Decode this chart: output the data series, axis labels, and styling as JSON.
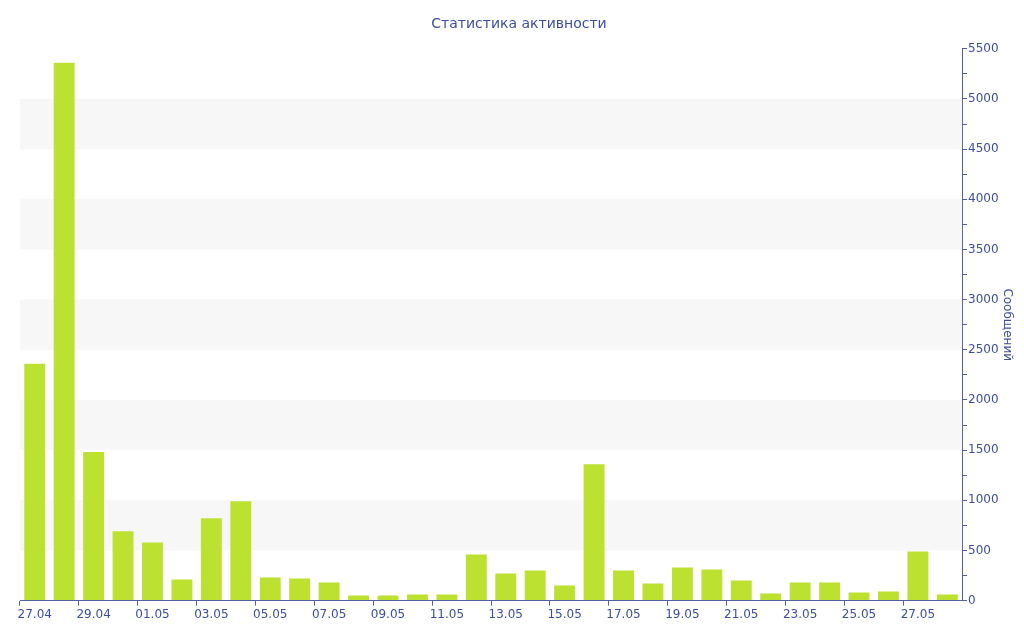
{
  "chart_data": {
    "type": "bar",
    "title": "Статистика активности",
    "ylabel": "Сообщений",
    "categories": [
      "27.04",
      null,
      "29.04",
      null,
      "01.05",
      null,
      "03.05",
      null,
      "05.05",
      null,
      "07.05",
      null,
      "09.05",
      null,
      "11.05",
      null,
      "13.05",
      null,
      "15.05",
      null,
      "17.05",
      null,
      "19.05",
      null,
      "21.05",
      null,
      "23.05",
      null,
      "25.05",
      null,
      "27.05",
      null
    ],
    "values": [
      2360,
      5360,
      1480,
      690,
      580,
      210,
      820,
      990,
      230,
      220,
      180,
      50,
      50,
      60,
      60,
      460,
      270,
      300,
      150,
      1360,
      300,
      170,
      330,
      310,
      200,
      70,
      180,
      180,
      80,
      90,
      490,
      60
    ],
    "color": "#bce130",
    "ylim": [
      0,
      5500
    ],
    "yticks": [
      0,
      {
        "value": 250,
        "label": null
      },
      500,
      {
        "value": 750,
        "label": null
      },
      1000,
      {
        "value": 1250,
        "label": null
      },
      1500,
      {
        "value": 1750,
        "label": null
      },
      2000,
      {
        "value": 2250,
        "label": null
      },
      2500,
      {
        "value": 2750,
        "label": null
      },
      3000,
      {
        "value": 3250,
        "label": null
      },
      3500,
      {
        "value": 3750,
        "label": null
      },
      4000,
      {
        "value": 4250,
        "label": null
      },
      4500,
      {
        "value": 4750,
        "label": null
      },
      5000,
      {
        "value": 5250,
        "label": null
      },
      5500
    ],
    "bands": [
      {
        "axis": "y",
        "from": 500,
        "to": 1000,
        "color": "#f7f7f7"
      },
      {
        "axis": "y",
        "from": 1500,
        "to": 2000,
        "color": "#f7f7f7"
      },
      {
        "axis": "y",
        "from": 2500,
        "to": 3000,
        "color": "#f7f7f7"
      },
      {
        "axis": "y",
        "from": 3500,
        "to": 4000,
        "color": "#f7f7f7"
      },
      {
        "axis": "y",
        "from": 4500,
        "to": 5000,
        "color": "#f7f7f7"
      }
    ]
  }
}
